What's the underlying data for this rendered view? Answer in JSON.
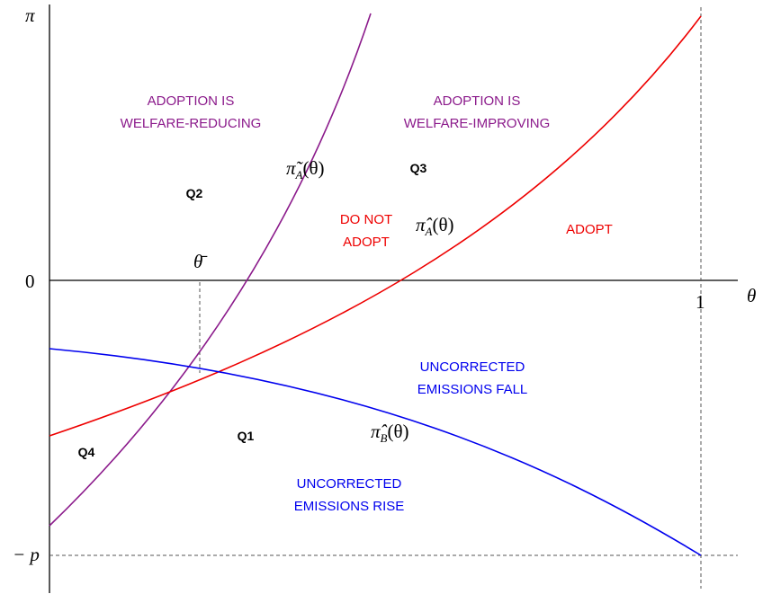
{
  "axes": {
    "y_label": "π",
    "x_label": "θ",
    "origin": "0",
    "x_one": "1",
    "y_minus": "− p",
    "theta_bar": "θ̄"
  },
  "regions": {
    "welfare_reducing": [
      "ADOPTION IS",
      "WELFARE-REDUCING"
    ],
    "welfare_improving": [
      "ADOPTION IS",
      "WELFARE-IMPROVING"
    ],
    "do_not_adopt": [
      "DO NOT",
      "ADOPT"
    ],
    "adopt": "ADOPT",
    "emissions_fall": [
      "UNCORRECTED",
      "EMISSIONS FALL"
    ],
    "emissions_rise": [
      "UNCORRECTED",
      "EMISSIONS RISE"
    ]
  },
  "quadrants": {
    "q1": "Q1",
    "q2": "Q2",
    "q3": "Q3",
    "q4": "Q4"
  },
  "curves": {
    "tilde_pi_a": {
      "base": "π̃",
      "sub": "A",
      "arg": "(θ)"
    },
    "hat_pi_a": {
      "base": "π̂",
      "sub": "A",
      "arg": "(θ)"
    },
    "hat_pi_b": {
      "base": "π̂",
      "sub": "B",
      "arg": "(θ)"
    }
  }
}
